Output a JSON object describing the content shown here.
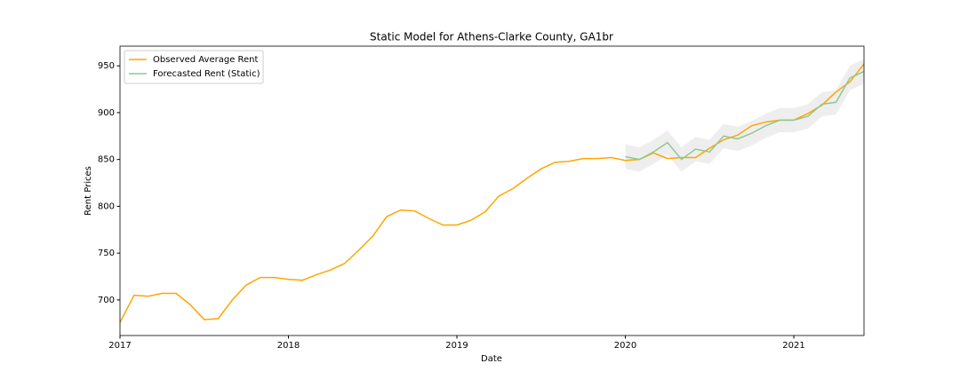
{
  "chart_data": {
    "type": "line",
    "title": "Static Model for Athens-Clarke County, GA1br",
    "x_label": "Date",
    "y_label": "Rent Prices",
    "x": [
      "2017-01",
      "2017-02",
      "2017-03",
      "2017-04",
      "2017-05",
      "2017-06",
      "2017-07",
      "2017-08",
      "2017-09",
      "2017-10",
      "2017-11",
      "2017-12",
      "2018-01",
      "2018-02",
      "2018-03",
      "2018-04",
      "2018-05",
      "2018-06",
      "2018-07",
      "2018-08",
      "2018-09",
      "2018-10",
      "2018-11",
      "2018-12",
      "2019-01",
      "2019-02",
      "2019-03",
      "2019-04",
      "2019-05",
      "2019-06",
      "2019-07",
      "2019-08",
      "2019-09",
      "2019-10",
      "2019-11",
      "2019-12",
      "2020-01",
      "2020-02",
      "2020-03",
      "2020-04",
      "2020-05",
      "2020-06",
      "2020-07",
      "2020-08",
      "2020-09",
      "2020-10",
      "2020-11",
      "2020-12",
      "2021-01",
      "2021-02",
      "2021-03",
      "2021-04",
      "2021-05",
      "2021-06"
    ],
    "series": [
      {
        "name": "Observed Average Rent",
        "color": "#ffa500",
        "values": [
          676,
          705,
          704,
          707,
          707,
          695,
          679,
          680,
          700,
          716,
          724,
          724,
          722,
          721,
          727,
          732,
          739,
          753,
          768,
          789,
          796,
          795,
          787,
          780,
          780,
          785,
          794,
          811,
          819,
          830,
          840,
          847,
          848,
          851,
          851,
          852,
          849,
          850,
          857,
          851,
          852,
          852,
          862,
          871,
          876,
          886,
          890,
          892,
          892,
          899,
          908,
          922,
          933,
          952
        ]
      },
      {
        "name": "Forecasted Rent (Static)",
        "color": "#90c890",
        "values": [
          null,
          null,
          null,
          null,
          null,
          null,
          null,
          null,
          null,
          null,
          null,
          null,
          null,
          null,
          null,
          null,
          null,
          null,
          null,
          null,
          null,
          null,
          null,
          null,
          null,
          null,
          null,
          null,
          null,
          null,
          null,
          null,
          null,
          null,
          null,
          null,
          853,
          850,
          858,
          868,
          850,
          861,
          858,
          875,
          872,
          878,
          886,
          892,
          892,
          896,
          909,
          911,
          937,
          944
        ]
      }
    ],
    "band": {
      "color": "#d9d9d9",
      "lower": [
        null,
        null,
        null,
        null,
        null,
        null,
        null,
        null,
        null,
        null,
        null,
        null,
        null,
        null,
        null,
        null,
        null,
        null,
        null,
        null,
        null,
        null,
        null,
        null,
        null,
        null,
        null,
        null,
        null,
        null,
        null,
        null,
        null,
        null,
        null,
        null,
        840,
        837,
        845,
        855,
        837,
        848,
        845,
        862,
        859,
        865,
        873,
        879,
        879,
        883,
        896,
        898,
        924,
        931
      ],
      "upper": [
        null,
        null,
        null,
        null,
        null,
        null,
        null,
        null,
        null,
        null,
        null,
        null,
        null,
        null,
        null,
        null,
        null,
        null,
        null,
        null,
        null,
        null,
        null,
        null,
        null,
        null,
        null,
        null,
        null,
        null,
        null,
        null,
        null,
        null,
        null,
        null,
        866,
        863,
        871,
        881,
        863,
        874,
        871,
        888,
        885,
        891,
        899,
        905,
        905,
        909,
        922,
        924,
        950,
        957
      ]
    },
    "xlim": [
      "2017-01",
      "2021-06"
    ],
    "xticks": [
      {
        "value": "2017-01",
        "label": "2017"
      },
      {
        "value": "2018-01",
        "label": "2018"
      },
      {
        "value": "2019-01",
        "label": "2019"
      },
      {
        "value": "2020-01",
        "label": "2020"
      },
      {
        "value": "2021-01",
        "label": "2021"
      }
    ],
    "ylim": [
      662,
      971
    ],
    "yticks": [
      700,
      750,
      800,
      850,
      900,
      950
    ],
    "legend": "upper-left",
    "grid": false
  }
}
